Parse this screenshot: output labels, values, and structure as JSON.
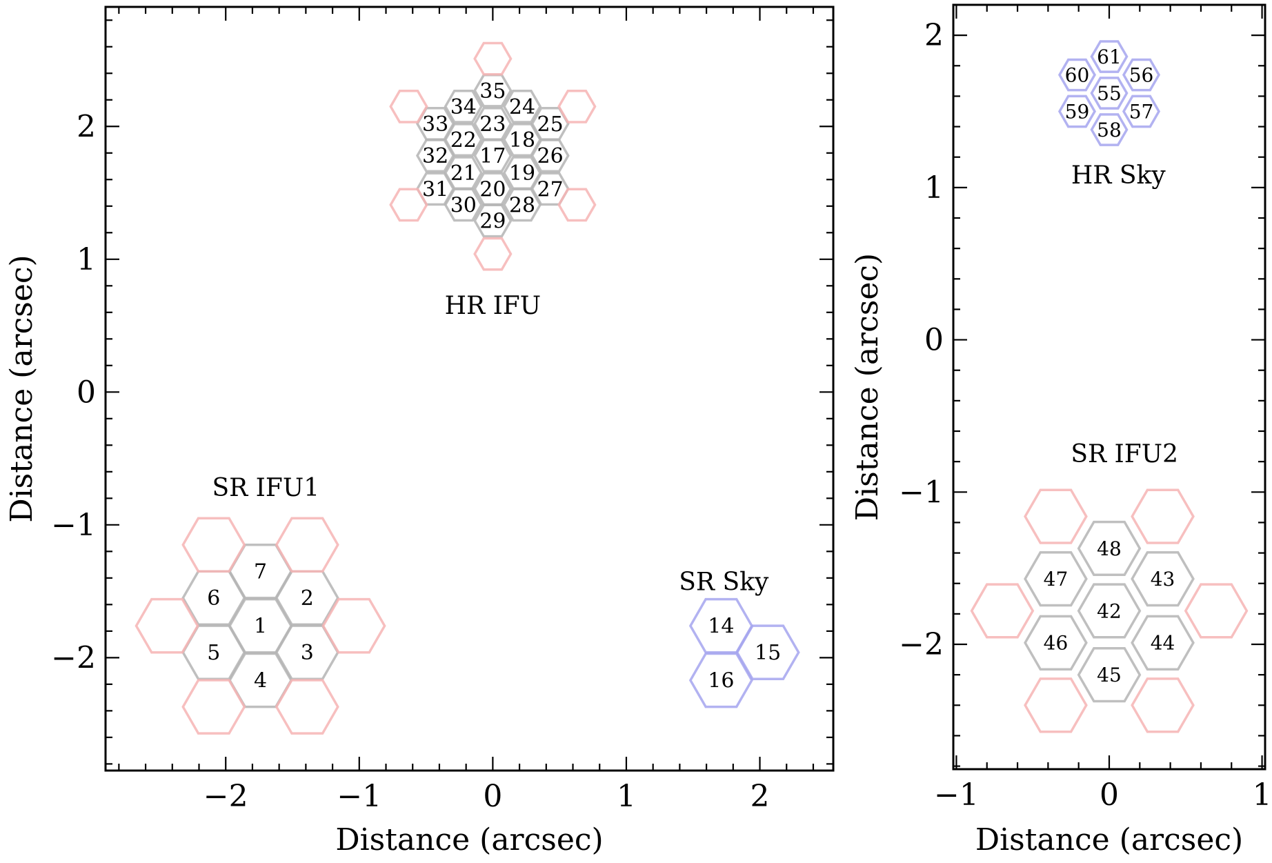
{
  "colors": {
    "science": "#b4b4b4",
    "sky": "#a4a4ee",
    "guide": "#f6b4b4",
    "axes": "#000000"
  },
  "chart_data": [
    {
      "type": "scatter",
      "xlabel": "Distance (arcsec)",
      "ylabel": "Distance (arcsec)",
      "xlim": [
        -2.9,
        2.55
      ],
      "ylim": [
        -2.85,
        2.9
      ],
      "xticks": [
        -2,
        -1,
        0,
        1,
        2
      ],
      "yticks": [
        -2,
        -1,
        0,
        1,
        2
      ],
      "xtick_labels": [
        "−2",
        "−1",
        "0",
        "1",
        "2"
      ],
      "ytick_labels": [
        "−2",
        "−1",
        "0",
        "1",
        "2"
      ],
      "groups": [
        {
          "name": "HR IFU",
          "label": {
            "text": "HR IFU",
            "x": 0,
            "y": 0.65
          },
          "radius": 0.135,
          "fibers": [
            {
              "id": "35",
              "x": 0,
              "y": 2.27,
              "kind": "science"
            },
            {
              "id": "34",
              "x": -0.22,
              "y": 2.15,
              "kind": "science"
            },
            {
              "id": "24",
              "x": 0.22,
              "y": 2.15,
              "kind": "science"
            },
            {
              "id": "33",
              "x": -0.43,
              "y": 2.02,
              "kind": "science"
            },
            {
              "id": "23",
              "x": 0,
              "y": 2.02,
              "kind": "science"
            },
            {
              "id": "25",
              "x": 0.43,
              "y": 2.02,
              "kind": "science"
            },
            {
              "id": "22",
              "x": -0.22,
              "y": 1.9,
              "kind": "science"
            },
            {
              "id": "18",
              "x": 0.22,
              "y": 1.9,
              "kind": "science"
            },
            {
              "id": "32",
              "x": -0.43,
              "y": 1.78,
              "kind": "science"
            },
            {
              "id": "17",
              "x": 0,
              "y": 1.78,
              "kind": "science"
            },
            {
              "id": "26",
              "x": 0.43,
              "y": 1.78,
              "kind": "science"
            },
            {
              "id": "21",
              "x": -0.22,
              "y": 1.65,
              "kind": "science"
            },
            {
              "id": "19",
              "x": 0.22,
              "y": 1.65,
              "kind": "science"
            },
            {
              "id": "31",
              "x": -0.43,
              "y": 1.53,
              "kind": "science"
            },
            {
              "id": "20",
              "x": 0,
              "y": 1.53,
              "kind": "science"
            },
            {
              "id": "27",
              "x": 0.43,
              "y": 1.53,
              "kind": "science"
            },
            {
              "id": "30",
              "x": -0.22,
              "y": 1.41,
              "kind": "science"
            },
            {
              "id": "28",
              "x": 0.22,
              "y": 1.41,
              "kind": "science"
            },
            {
              "id": "29",
              "x": 0,
              "y": 1.29,
              "kind": "science"
            },
            {
              "id": "",
              "x": 0,
              "y": 2.51,
              "kind": "guide"
            },
            {
              "id": "",
              "x": 0,
              "y": 1.04,
              "kind": "guide"
            },
            {
              "id": "",
              "x": -0.63,
              "y": 2.15,
              "kind": "guide"
            },
            {
              "id": "",
              "x": 0.63,
              "y": 2.15,
              "kind": "guide"
            },
            {
              "id": "",
              "x": -0.63,
              "y": 1.41,
              "kind": "guide"
            },
            {
              "id": "",
              "x": 0.63,
              "y": 1.41,
              "kind": "guide"
            }
          ]
        },
        {
          "name": "SR IFU1",
          "label": {
            "text": "SR IFU1",
            "x": -1.7,
            "y": -0.72
          },
          "radius": 0.23,
          "fibers": [
            {
              "id": "1",
              "x": -1.74,
              "y": -1.76,
              "kind": "science"
            },
            {
              "id": "7",
              "x": -1.74,
              "y": -1.35,
              "kind": "science"
            },
            {
              "id": "4",
              "x": -1.74,
              "y": -2.17,
              "kind": "science"
            },
            {
              "id": "6",
              "x": -2.09,
              "y": -1.55,
              "kind": "science"
            },
            {
              "id": "2",
              "x": -1.39,
              "y": -1.55,
              "kind": "science"
            },
            {
              "id": "5",
              "x": -2.09,
              "y": -1.96,
              "kind": "science"
            },
            {
              "id": "3",
              "x": -1.39,
              "y": -1.96,
              "kind": "science"
            },
            {
              "id": "",
              "x": -2.09,
              "y": -1.15,
              "kind": "guide"
            },
            {
              "id": "",
              "x": -1.39,
              "y": -1.15,
              "kind": "guide"
            },
            {
              "id": "",
              "x": -2.44,
              "y": -1.76,
              "kind": "guide"
            },
            {
              "id": "",
              "x": -1.04,
              "y": -1.76,
              "kind": "guide"
            },
            {
              "id": "",
              "x": -2.09,
              "y": -2.37,
              "kind": "guide"
            },
            {
              "id": "",
              "x": -1.39,
              "y": -2.37,
              "kind": "guide"
            }
          ]
        },
        {
          "name": "SR Sky",
          "label": {
            "text": "SR Sky",
            "x": 1.73,
            "y": -1.43
          },
          "radius": 0.23,
          "fibers": [
            {
              "id": "14",
              "x": 1.71,
              "y": -1.76,
              "kind": "sky"
            },
            {
              "id": "15",
              "x": 2.06,
              "y": -1.96,
              "kind": "sky"
            },
            {
              "id": "16",
              "x": 1.71,
              "y": -2.17,
              "kind": "sky"
            }
          ]
        }
      ]
    },
    {
      "type": "scatter",
      "xlabel": "Distance (arcsec)",
      "ylabel": "Distance (arcsec)",
      "xlim": [
        -1.02,
        1.02
      ],
      "ylim": [
        -2.82,
        2.2
      ],
      "xticks": [
        -1,
        0,
        1
      ],
      "yticks": [
        -2,
        -1,
        0,
        1,
        2
      ],
      "xtick_labels": [
        "−1",
        "0",
        "1"
      ],
      "ytick_labels": [
        "−2",
        "−1",
        "0",
        "1",
        "2"
      ],
      "groups": [
        {
          "name": "HR Sky",
          "label": {
            "text": "HR Sky",
            "x": 0.06,
            "y": 1.08
          },
          "radius": 0.115,
          "fibers": [
            {
              "id": "55",
              "x": 0,
              "y": 1.62,
              "kind": "sky"
            },
            {
              "id": "61",
              "x": 0,
              "y": 1.86,
              "kind": "sky"
            },
            {
              "id": "58",
              "x": 0,
              "y": 1.38,
              "kind": "sky"
            },
            {
              "id": "60",
              "x": -0.21,
              "y": 1.74,
              "kind": "sky"
            },
            {
              "id": "56",
              "x": 0.21,
              "y": 1.74,
              "kind": "sky"
            },
            {
              "id": "59",
              "x": -0.21,
              "y": 1.5,
              "kind": "sky"
            },
            {
              "id": "57",
              "x": 0.21,
              "y": 1.5,
              "kind": "sky"
            }
          ]
        },
        {
          "name": "SR IFU2",
          "label": {
            "text": "SR IFU2",
            "x": 0.1,
            "y": -0.75
          },
          "radius": 0.2,
          "fibers": [
            {
              "id": "42",
              "x": 0,
              "y": -1.78,
              "kind": "science"
            },
            {
              "id": "48",
              "x": 0,
              "y": -1.37,
              "kind": "science"
            },
            {
              "id": "45",
              "x": 0,
              "y": -2.2,
              "kind": "science"
            },
            {
              "id": "47",
              "x": -0.35,
              "y": -1.57,
              "kind": "science"
            },
            {
              "id": "43",
              "x": 0.35,
              "y": -1.57,
              "kind": "science"
            },
            {
              "id": "46",
              "x": -0.35,
              "y": -1.99,
              "kind": "science"
            },
            {
              "id": "44",
              "x": 0.35,
              "y": -1.99,
              "kind": "science"
            },
            {
              "id": "",
              "x": -0.35,
              "y": -1.16,
              "kind": "guide"
            },
            {
              "id": "",
              "x": 0.35,
              "y": -1.16,
              "kind": "guide"
            },
            {
              "id": "",
              "x": -0.7,
              "y": -1.78,
              "kind": "guide"
            },
            {
              "id": "",
              "x": 0.7,
              "y": -1.78,
              "kind": "guide"
            },
            {
              "id": "",
              "x": -0.35,
              "y": -2.4,
              "kind": "guide"
            },
            {
              "id": "",
              "x": 0.35,
              "y": -2.4,
              "kind": "guide"
            }
          ]
        }
      ]
    }
  ]
}
